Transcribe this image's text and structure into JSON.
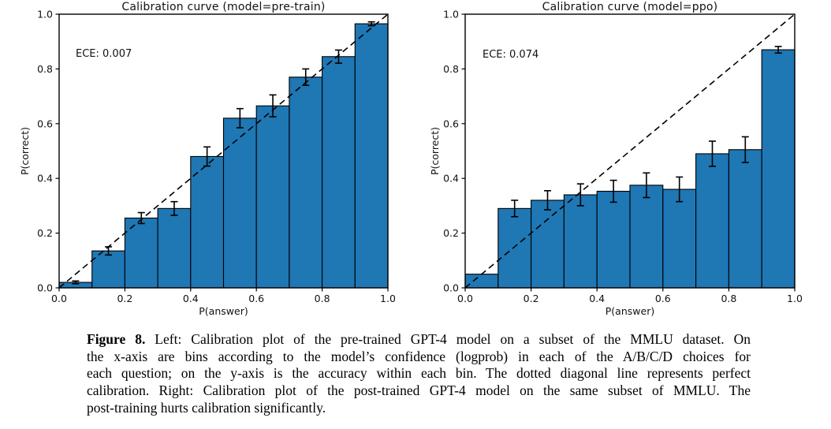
{
  "chart_data": [
    {
      "type": "bar",
      "title": "Calibration curve (model=pre-train)",
      "annotation": "ECE: 0.007",
      "xlabel": "P(answer)",
      "ylabel": "P(correct)",
      "xlim": [
        0,
        1
      ],
      "ylim": [
        0,
        1
      ],
      "xticks": [
        "0.0",
        "0.2",
        "0.4",
        "0.6",
        "0.8",
        "1.0"
      ],
      "yticks": [
        "0.0",
        "0.2",
        "0.4",
        "0.6",
        "0.8",
        "1.0"
      ],
      "grid": false,
      "legend": "none",
      "bin_edges": [
        0.0,
        0.1,
        0.2,
        0.3,
        0.4,
        0.5,
        0.6,
        0.7,
        0.8,
        0.9,
        1.0
      ],
      "values": [
        0.02,
        0.135,
        0.255,
        0.29,
        0.48,
        0.62,
        0.665,
        0.77,
        0.845,
        0.965
      ],
      "errors": [
        0.005,
        0.015,
        0.02,
        0.025,
        0.035,
        0.035,
        0.04,
        0.03,
        0.024,
        0.007
      ],
      "bar_color": "#1f77b4",
      "bar_edge_color": "#000000",
      "diagonal": {
        "style": "dashed",
        "from": [
          0,
          0
        ],
        "to": [
          1,
          1
        ],
        "color": "#000000",
        "meaning": "perfect calibration"
      }
    },
    {
      "type": "bar",
      "title": "Calibration curve (model=ppo)",
      "annotation": "ECE: 0.074",
      "xlabel": "P(answer)",
      "ylabel": "P(correct)",
      "xlim": [
        0,
        1
      ],
      "ylim": [
        0,
        1
      ],
      "xticks": [
        "0.0",
        "0.2",
        "0.4",
        "0.6",
        "0.8",
        "1.0"
      ],
      "yticks": [
        "0.0",
        "0.2",
        "0.4",
        "0.6",
        "0.8",
        "1.0"
      ],
      "grid": false,
      "legend": "none",
      "bin_edges": [
        0.0,
        0.1,
        0.2,
        0.3,
        0.4,
        0.5,
        0.6,
        0.7,
        0.8,
        0.9,
        1.0
      ],
      "values": [
        0.05,
        0.29,
        0.32,
        0.34,
        0.353,
        0.375,
        0.36,
        0.49,
        0.505,
        0.87
      ],
      "errors": [
        0,
        0.03,
        0.035,
        0.04,
        0.04,
        0.045,
        0.045,
        0.046,
        0.047,
        0.012
      ],
      "bar_color": "#1f77b4",
      "bar_edge_color": "#000000",
      "diagonal": {
        "style": "dashed",
        "from": [
          0,
          0
        ],
        "to": [
          1,
          1
        ],
        "color": "#000000",
        "meaning": "perfect calibration"
      }
    }
  ],
  "caption": {
    "figure_label": "Figure 8.",
    "lines": [
      " Left: Calibration plot of the pre-trained GPT-4 model on a subset of the MMLU dataset. On",
      "the x-axis are bins according to the model’s confidence (logprob) in each of the A/B/C/D choices for",
      "each question; on the y-axis is the accuracy within each bin. The dotted diagonal line represents perfect",
      "calibration. Right: Calibration plot of the post-trained GPT-4 model on the same subset of MMLU. The",
      "post-training hurts calibration significantly."
    ]
  }
}
